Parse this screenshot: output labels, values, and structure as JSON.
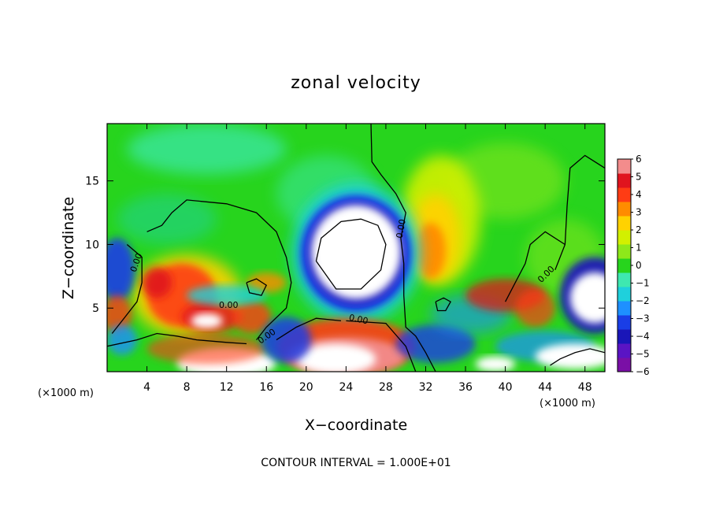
{
  "chart_data": {
    "type": "heatmap",
    "title": "zonal velocity",
    "xlabel": "X−coordinate",
    "ylabel": "Z−coordinate",
    "x_unit_label": "(×1000 m)",
    "x_unit_label_right": "(×1000 m)",
    "xlim": [
      0,
      50
    ],
    "ylim": [
      0,
      19.5
    ],
    "x_ticks": [
      4,
      8,
      12,
      16,
      20,
      24,
      28,
      32,
      36,
      40,
      44,
      48
    ],
    "y_ticks": [
      5,
      10,
      15
    ],
    "colorbar": {
      "range": [
        -6,
        6
      ],
      "ticks": [
        6,
        5,
        4,
        3,
        2,
        1,
        0,
        -1,
        -2,
        -3,
        -4,
        -5,
        -6
      ],
      "tick_labels": [
        "6",
        "5",
        "4",
        "3",
        "2",
        "1",
        "0",
        "−1",
        "−2",
        "−3",
        "−4",
        "−5",
        "−6"
      ],
      "colors": [
        "#7a0fa6",
        "#5a14c4",
        "#1a16b8",
        "#1a3ee6",
        "#1e90ff",
        "#1fd0dc",
        "#3ee8b0",
        "#27d41d",
        "#8ee81a",
        "#d2f000",
        "#ffd200",
        "#ff8c00",
        "#ff3c14",
        "#e0141e",
        "#f38c8c"
      ]
    },
    "features": [
      {
        "kind": "negative_jet",
        "center": [
          25,
          9.3
        ],
        "min_value": -6
      },
      {
        "kind": "positive_jet",
        "center": [
          33,
          10.5
        ],
        "max_value": 3.5
      },
      {
        "kind": "positive_band",
        "center": [
          8,
          5.5
        ],
        "max_value": 6
      },
      {
        "kind": "positive_band",
        "center": [
          24,
          2
        ],
        "max_value": 6
      },
      {
        "kind": "negative_band",
        "center": [
          48,
          6
        ],
        "min_value": -6
      }
    ],
    "contour_labels": [
      "0.00",
      "0.00",
      "0.00",
      "0.00",
      "0.00",
      "0.00"
    ],
    "contour_interval_text": "CONTOUR INTERVAL = 1.000E+01",
    "grid": false
  }
}
